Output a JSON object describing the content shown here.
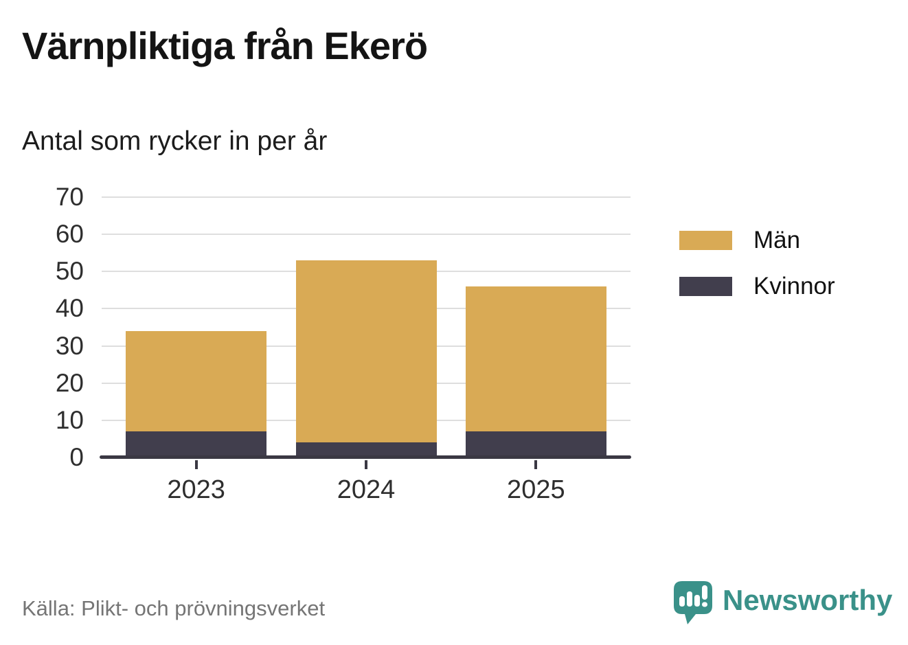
{
  "header": {
    "title": "Värnpliktiga från Ekerö",
    "subtitle": "Antal som rycker in per år"
  },
  "footer": {
    "source": "Källa: Plikt- och prövningsverket",
    "brand": "Newsworthy"
  },
  "icons": {
    "brand": "newsworthy-speech-bubble-bar-chart-icon"
  },
  "colors": {
    "men_gold": "#D9AA55",
    "women_dark": "#413E4D",
    "axis": "#3A3843",
    "gridline": "#DEDEDE",
    "brand_teal": "#3A9189",
    "source_gray": "#757575"
  },
  "chart_data": {
    "type": "bar",
    "stacked": true,
    "title": "Värnpliktiga från Ekerö",
    "subtitle": "Antal som rycker in per år",
    "categories": [
      "2023",
      "2024",
      "2025"
    ],
    "series": [
      {
        "name": "Män",
        "color": "#D9AA55",
        "values": [
          27,
          49,
          39
        ]
      },
      {
        "name": "Kvinnor",
        "color": "#413E4D",
        "values": [
          7,
          4,
          7
        ]
      }
    ],
    "totals": [
      34,
      53,
      46
    ],
    "ylim": [
      0,
      70
    ],
    "yticks": [
      0,
      10,
      20,
      30,
      40,
      50,
      60,
      70
    ],
    "xlabel": "",
    "ylabel": "",
    "grid": true,
    "legend_position": "right",
    "source": "Källa: Plikt- och prövningsverket"
  }
}
